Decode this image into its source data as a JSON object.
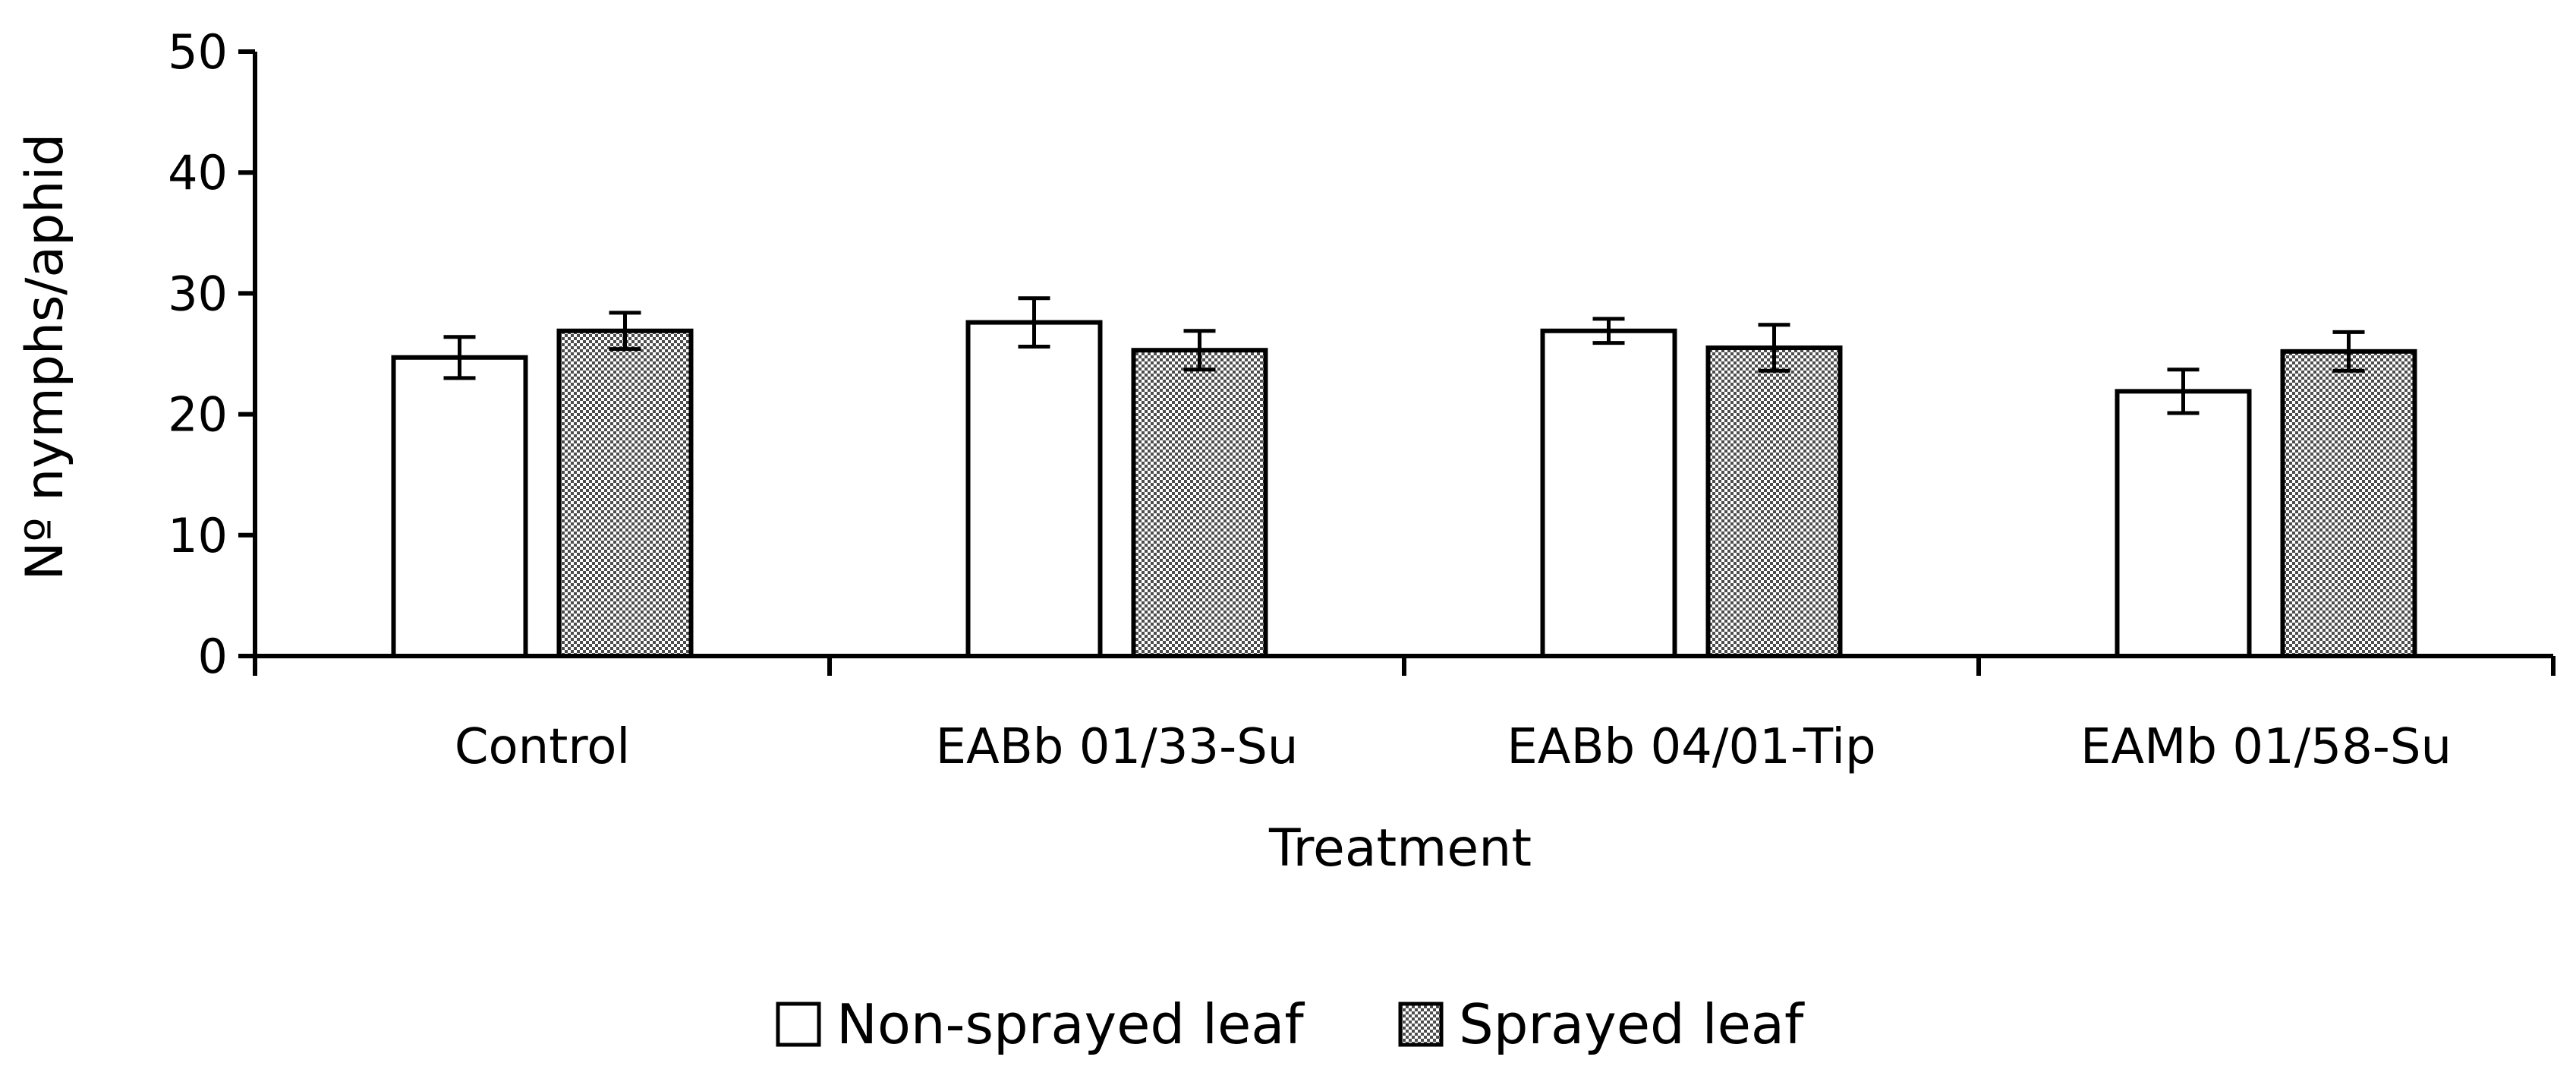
{
  "chart_data": {
    "type": "bar",
    "title": "",
    "xlabel": "Treatment",
    "ylabel": "Nº nymphs/aphid",
    "ylim": [
      0,
      50
    ],
    "yticks": [
      0,
      10,
      20,
      30,
      40,
      50
    ],
    "grid": false,
    "legend_position": "bottom",
    "categories": [
      "Control",
      "EABb 01/33-Su",
      "EABb 04/01-Tip",
      "EAMb 01/58-Su"
    ],
    "series": [
      {
        "name": "Non-sprayed leaf",
        "values": [
          24.7,
          27.6,
          26.9,
          21.9
        ],
        "errors": [
          1.7,
          2.0,
          1.0,
          1.8
        ],
        "fill": "white"
      },
      {
        "name": "Sprayed leaf",
        "values": [
          26.9,
          25.3,
          25.5,
          25.2
        ],
        "errors": [
          1.5,
          1.6,
          1.9,
          1.6
        ],
        "fill": "checkered"
      }
    ],
    "colors": {
      "axis": "#000000",
      "bar_outline": "#000000",
      "pattern_dark": "#4d4d4d",
      "pattern_light": "#ffffff"
    }
  }
}
